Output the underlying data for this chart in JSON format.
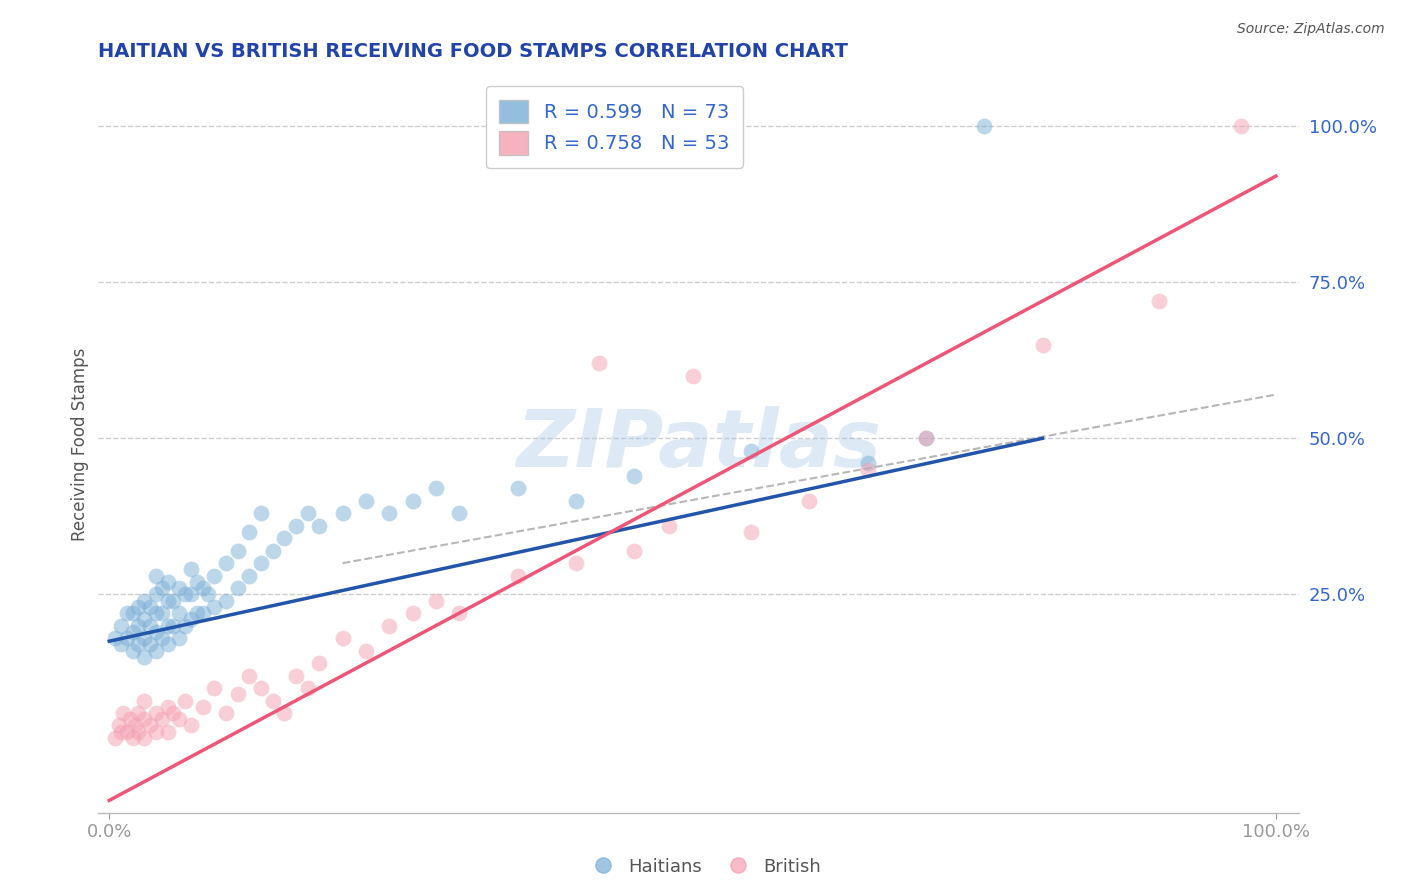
{
  "title": "HAITIAN VS BRITISH RECEIVING FOOD STAMPS CORRELATION CHART",
  "source": "Source: ZipAtlas.com",
  "ylabel": "Receiving Food Stamps",
  "legend_labels": [
    "Haitians",
    "British"
  ],
  "legend_blue_text": "R = 0.599   N = 73",
  "legend_pink_text": "R = 0.758   N = 53",
  "blue_color": "#7aaed6",
  "pink_color": "#f4a0b0",
  "blue_line_color": "#2255aa",
  "pink_line_color": "#ee5577",
  "watermark": "ZIPatlas",
  "title_color": "#2244aa",
  "axis_label_color": "#3366cc",
  "blue_scatter_x": [
    0.005,
    0.01,
    0.01,
    0.015,
    0.015,
    0.02,
    0.02,
    0.02,
    0.025,
    0.025,
    0.025,
    0.03,
    0.03,
    0.03,
    0.03,
    0.035,
    0.035,
    0.035,
    0.04,
    0.04,
    0.04,
    0.04,
    0.04,
    0.045,
    0.045,
    0.045,
    0.05,
    0.05,
    0.05,
    0.05,
    0.055,
    0.055,
    0.06,
    0.06,
    0.06,
    0.065,
    0.065,
    0.07,
    0.07,
    0.07,
    0.075,
    0.075,
    0.08,
    0.08,
    0.085,
    0.09,
    0.09,
    0.1,
    0.1,
    0.11,
    0.11,
    0.12,
    0.12,
    0.13,
    0.13,
    0.14,
    0.15,
    0.16,
    0.17,
    0.18,
    0.2,
    0.22,
    0.24,
    0.26,
    0.28,
    0.3,
    0.35,
    0.4,
    0.45,
    0.55,
    0.65,
    0.7,
    0.75
  ],
  "blue_scatter_y": [
    0.18,
    0.17,
    0.2,
    0.18,
    0.22,
    0.16,
    0.19,
    0.22,
    0.17,
    0.2,
    0.23,
    0.15,
    0.18,
    0.21,
    0.24,
    0.17,
    0.2,
    0.23,
    0.16,
    0.19,
    0.22,
    0.25,
    0.28,
    0.18,
    0.22,
    0.26,
    0.17,
    0.2,
    0.24,
    0.27,
    0.2,
    0.24,
    0.18,
    0.22,
    0.26,
    0.2,
    0.25,
    0.21,
    0.25,
    0.29,
    0.22,
    0.27,
    0.22,
    0.26,
    0.25,
    0.23,
    0.28,
    0.24,
    0.3,
    0.26,
    0.32,
    0.28,
    0.35,
    0.3,
    0.38,
    0.32,
    0.34,
    0.36,
    0.38,
    0.36,
    0.38,
    0.4,
    0.38,
    0.4,
    0.42,
    0.38,
    0.42,
    0.4,
    0.44,
    0.48,
    0.46,
    0.5,
    1.0
  ],
  "pink_scatter_x": [
    0.005,
    0.008,
    0.01,
    0.012,
    0.015,
    0.018,
    0.02,
    0.022,
    0.025,
    0.025,
    0.03,
    0.03,
    0.03,
    0.035,
    0.04,
    0.04,
    0.045,
    0.05,
    0.05,
    0.055,
    0.06,
    0.065,
    0.07,
    0.08,
    0.09,
    0.1,
    0.11,
    0.12,
    0.13,
    0.14,
    0.15,
    0.16,
    0.17,
    0.18,
    0.2,
    0.22,
    0.24,
    0.26,
    0.28,
    0.3,
    0.35,
    0.4,
    0.42,
    0.45,
    0.48,
    0.5,
    0.55,
    0.6,
    0.65,
    0.7,
    0.8,
    0.9,
    0.97
  ],
  "pink_scatter_y": [
    0.02,
    0.04,
    0.03,
    0.06,
    0.03,
    0.05,
    0.02,
    0.04,
    0.03,
    0.06,
    0.02,
    0.05,
    0.08,
    0.04,
    0.03,
    0.06,
    0.05,
    0.03,
    0.07,
    0.06,
    0.05,
    0.08,
    0.04,
    0.07,
    0.1,
    0.06,
    0.09,
    0.12,
    0.1,
    0.08,
    0.06,
    0.12,
    0.1,
    0.14,
    0.18,
    0.16,
    0.2,
    0.22,
    0.24,
    0.22,
    0.28,
    0.3,
    0.62,
    0.32,
    0.36,
    0.6,
    0.35,
    0.4,
    0.45,
    0.5,
    0.65,
    0.72,
    1.0
  ],
  "blue_line_x": [
    0.0,
    0.8
  ],
  "blue_line_y": [
    0.175,
    0.5
  ],
  "pink_line_x": [
    0.0,
    1.0
  ],
  "pink_line_y": [
    -0.08,
    0.92
  ],
  "diag_line_x": [
    0.2,
    1.0
  ],
  "diag_line_y": [
    0.3,
    0.57
  ],
  "ytick_positions": [
    0.0,
    0.25,
    0.5,
    0.75,
    1.0
  ],
  "ytick_labels": [
    "",
    "25.0%",
    "50.0%",
    "75.0%",
    "100.0%"
  ],
  "xtick_positions": [
    0.0,
    1.0
  ],
  "xtick_labels": [
    "0.0%",
    "100.0%"
  ],
  "ylim": [
    -0.1,
    1.08
  ],
  "xlim": [
    -0.01,
    1.02
  ]
}
